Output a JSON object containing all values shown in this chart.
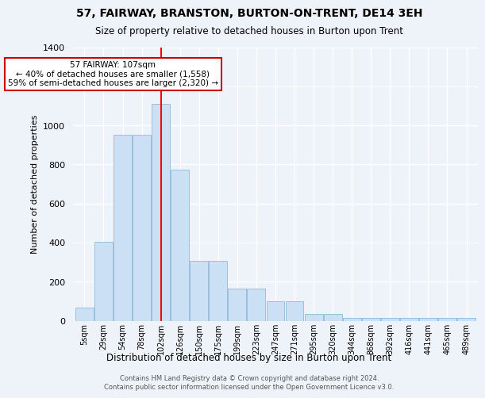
{
  "title": "57, FAIRWAY, BRANSTON, BURTON-ON-TRENT, DE14 3EH",
  "subtitle": "Size of property relative to detached houses in Burton upon Trent",
  "xlabel": "Distribution of detached houses by size in Burton upon Trent",
  "ylabel": "Number of detached properties",
  "bin_labels": [
    "5sqm",
    "29sqm",
    "54sqm",
    "78sqm",
    "102sqm",
    "126sqm",
    "150sqm",
    "175sqm",
    "199sqm",
    "223sqm",
    "247sqm",
    "271sqm",
    "295sqm",
    "320sqm",
    "344sqm",
    "368sqm",
    "392sqm",
    "416sqm",
    "441sqm",
    "465sqm",
    "489sqm"
  ],
  "bar_values": [
    65,
    405,
    950,
    950,
    1110,
    775,
    305,
    305,
    165,
    165,
    100,
    100,
    35,
    35,
    15,
    15,
    15,
    15,
    15,
    15,
    15
  ],
  "bar_color": "#cce0f5",
  "bar_edge_color": "#9dbfda",
  "property_bin_index": 4,
  "annotation_title": "57 FAIRWAY: 107sqm",
  "annotation_line1": "← 40% of detached houses are smaller (1,558)",
  "annotation_line2": "59% of semi-detached houses are larger (2,320) →",
  "footer_line1": "Contains HM Land Registry data © Crown copyright and database right 2024.",
  "footer_line2": "Contains public sector information licensed under the Open Government Licence v3.0.",
  "ylim": [
    0,
    1400
  ],
  "background_color": "#eef2f9",
  "grid_color": "#ffffff",
  "annotation_box_color": "#ffffff",
  "annotation_box_edge": "#cc0000"
}
